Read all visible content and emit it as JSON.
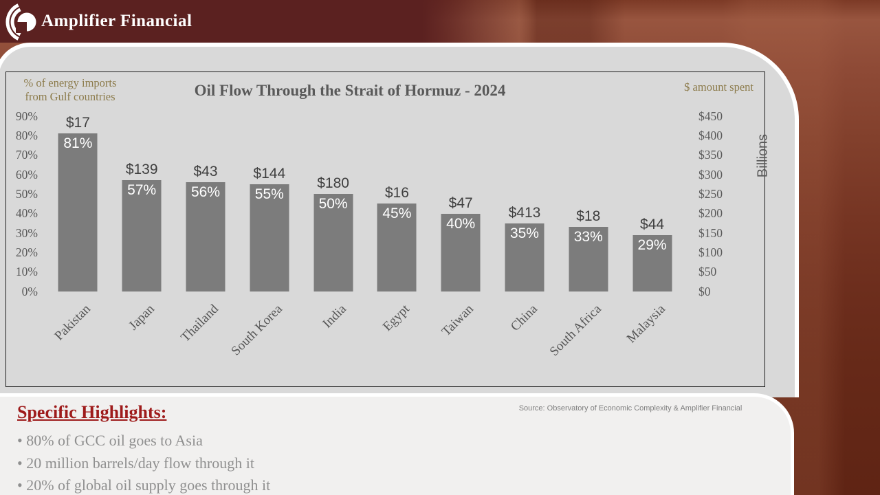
{
  "header": {
    "brand": "Amplifier Financial"
  },
  "chart": {
    "title": "Oil Flow Through the Strait of Hormuz - 2024",
    "left_axis_title_line1": "% of energy imports",
    "left_axis_title_line2": "from Gulf countries",
    "right_axis_title": "$ amount spent",
    "right_axis_unit": "Billions"
  },
  "chart_data": {
    "type": "bar",
    "title": "Oil Flow Through the Strait of Hormuz - 2024",
    "categories": [
      "Pakistan",
      "Japan",
      "Thailand",
      "South Korea",
      "India",
      "Egypt",
      "Taiwan",
      "China",
      "South Africa",
      "Malaysia"
    ],
    "series": [
      {
        "name": "% of energy imports from Gulf countries",
        "axis": "left",
        "unit": "%",
        "values": [
          81,
          57,
          56,
          55,
          50,
          45,
          40,
          35,
          33,
          29
        ]
      },
      {
        "name": "$ amount spent (Billions)",
        "axis": "right",
        "unit": "$B",
        "values": [
          17,
          139,
          43,
          144,
          180,
          16,
          47,
          413,
          18,
          44
        ]
      }
    ],
    "bar_value_labels": [
      "$17",
      "$139",
      "$43",
      "$144",
      "$180",
      "$16",
      "$47",
      "$413",
      "$18",
      "$44"
    ],
    "bar_pct_labels": [
      "81%",
      "57%",
      "56%",
      "55%",
      "50%",
      "45%",
      "40%",
      "35%",
      "33%",
      "29%"
    ],
    "left_axis_ticks": [
      "90%",
      "80%",
      "70%",
      "60%",
      "50%",
      "40%",
      "30%",
      "20%",
      "10%",
      "0%"
    ],
    "right_axis_ticks": [
      "$450",
      "$400",
      "$350",
      "$300",
      "$250",
      "$200",
      "$150",
      "$100",
      "$50",
      "$0"
    ],
    "left_ylim": [
      0,
      90
    ],
    "right_ylim": [
      0,
      450
    ],
    "grid": false,
    "legend": false,
    "bar_color": "#7c7c7c"
  },
  "highlights": {
    "title": "Specific Highlights:",
    "bullets": [
      "80% of GCC oil goes to Asia",
      "20 million barrels/day flow through it",
      "20% of global oil supply goes through it"
    ]
  },
  "source": "Source: Observatory of Economic Complexity & Amplifier Financial",
  "colors": {
    "header_maroon": "#5b2120",
    "panel_gray": "#d9d9d9",
    "bar_gray": "#7c7c7c",
    "axis_gold": "#8c7b4b",
    "highlight_red": "#9e1b1b",
    "title_gray": "#595959",
    "background_red": "#6d2e1d"
  }
}
